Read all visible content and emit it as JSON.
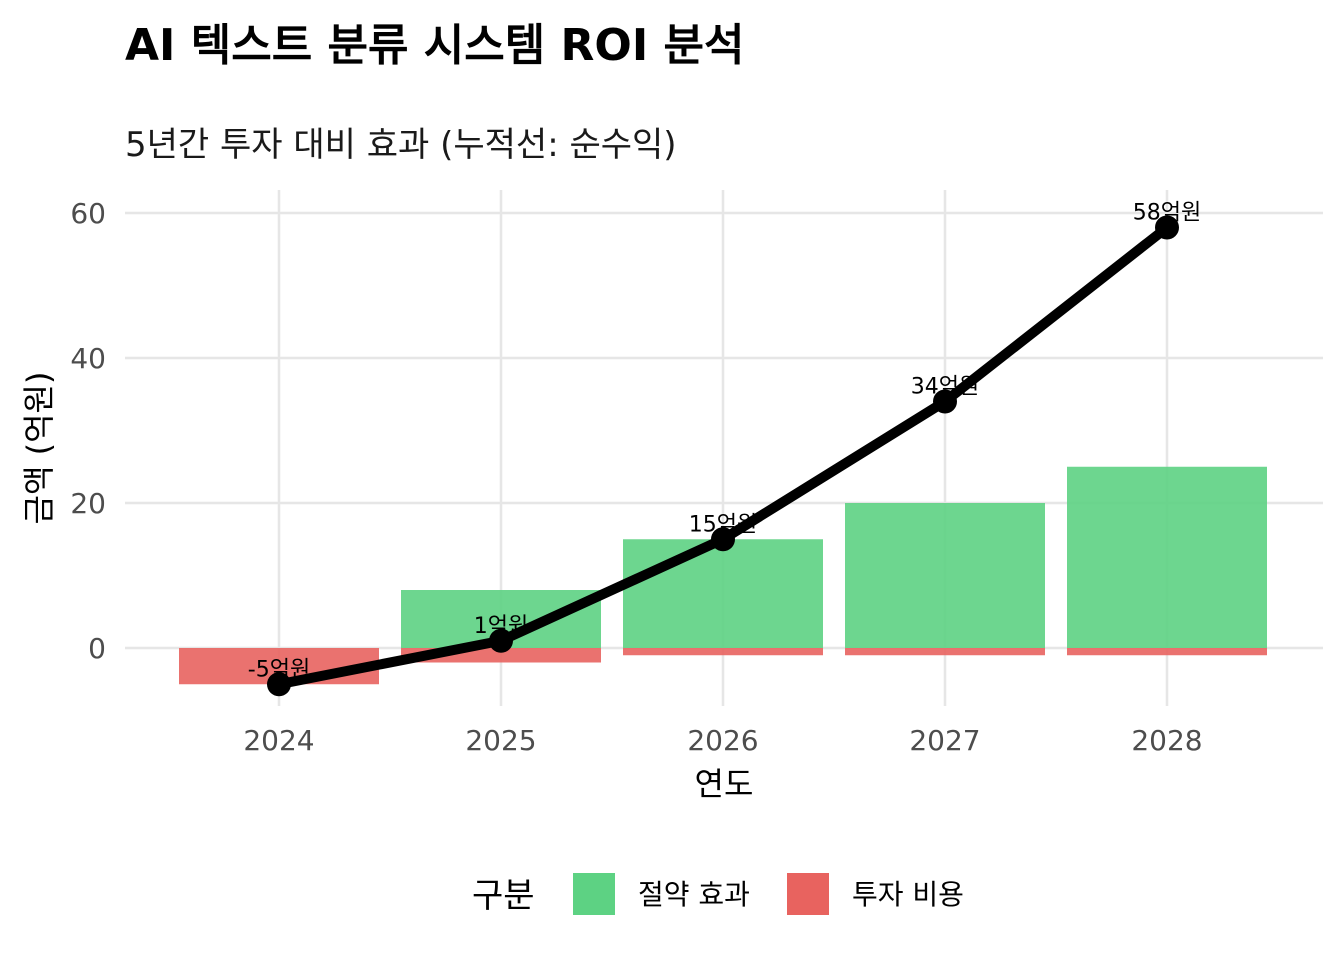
{
  "chart_data": {
    "type": "bar",
    "title": "AI 텍스트 분류 시스템 ROI 분석",
    "subtitle": "5년간 투자 대비 효과 (누적선: 순수익)",
    "xlabel": "연도",
    "ylabel": "금액 (억원)",
    "categories": [
      "2024",
      "2025",
      "2026",
      "2027",
      "2028"
    ],
    "ylim": [
      -8,
      63
    ],
    "yticks": [
      0,
      20,
      40,
      60
    ],
    "grid": true,
    "series": [
      {
        "name": "절약 효과",
        "type": "bar",
        "color": "#5DD283",
        "values": [
          0,
          8,
          15,
          20,
          25
        ]
      },
      {
        "name": "투자 비용",
        "type": "bar",
        "color": "#E8635F",
        "values": [
          -5,
          -2,
          -1,
          -1,
          -1
        ]
      },
      {
        "name": "",
        "type": "line",
        "color": "#000000",
        "values": [
          -5,
          1,
          15,
          34,
          58
        ]
      }
    ],
    "line_labels": [
      "-5억원",
      "1억원",
      "15억원",
      "34억원",
      "58억원"
    ],
    "legend": {
      "title": "구분",
      "position": "bottom",
      "items": [
        "절약 효과",
        "투자 비용"
      ]
    }
  }
}
